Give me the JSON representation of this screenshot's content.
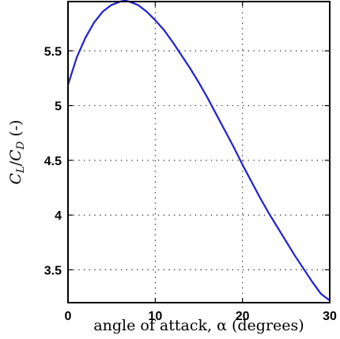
{
  "chart_data": {
    "type": "line",
    "title": "",
    "xlabel": "angle of attack, α (degrees)",
    "ylabel": "C_L/C_D (-)",
    "xlim": [
      0,
      30
    ],
    "ylim": [
      3.2,
      5.95
    ],
    "grid": true,
    "x_ticks": [
      0,
      10,
      20,
      30
    ],
    "x_tick_labels": [
      "0",
      "10",
      "20",
      "30"
    ],
    "y_ticks": [
      3.5,
      4,
      4.5,
      5,
      5.5
    ],
    "y_tick_labels": [
      "3.5",
      "4",
      "4.5",
      "5",
      "5.5"
    ],
    "series": [
      {
        "color": "#1f1fd6",
        "x": [
          0,
          1,
          2,
          3,
          4,
          5,
          6,
          6.5,
          7,
          8,
          9,
          10,
          11,
          12,
          13,
          14,
          15,
          16,
          17,
          18,
          19,
          20,
          21,
          22,
          23,
          24,
          25,
          26,
          27,
          28,
          29,
          30
        ],
        "y": [
          5.19,
          5.44,
          5.62,
          5.76,
          5.86,
          5.92,
          5.95,
          5.96,
          5.95,
          5.92,
          5.86,
          5.78,
          5.69,
          5.58,
          5.46,
          5.34,
          5.21,
          5.07,
          4.92,
          4.77,
          4.62,
          4.46,
          4.31,
          4.16,
          4.02,
          3.89,
          3.76,
          3.63,
          3.51,
          3.39,
          3.28,
          3.22
        ]
      }
    ]
  }
}
